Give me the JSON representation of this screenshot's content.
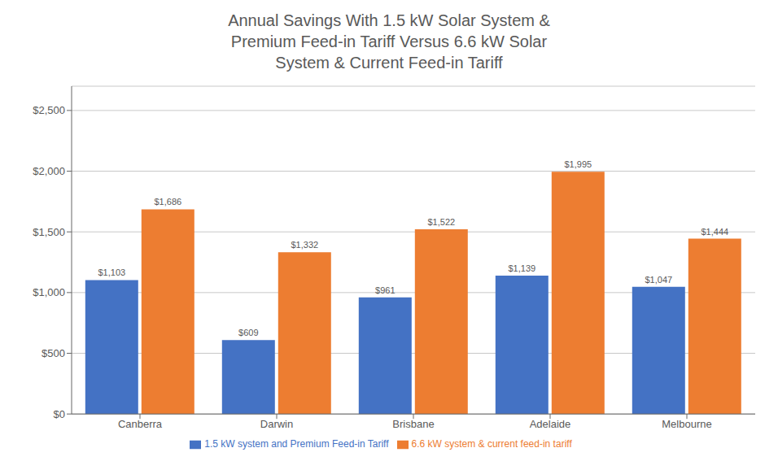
{
  "chart_data": {
    "type": "bar",
    "title": "Annual Savings With 1.5 kW Solar System &\nPremium Feed-in Tariff Versus 6.6 kW Solar\nSystem & Current Feed-in Tariff",
    "categories": [
      "Canberra",
      "Darwin",
      "Brisbane",
      "Adelaide",
      "Melbourne"
    ],
    "series": [
      {
        "name": "1.5 kW system and Premium Feed-in Tariff",
        "color": "#4472C4",
        "values": [
          1103,
          609,
          961,
          1139,
          1047
        ],
        "value_labels": [
          "$1,103",
          "$609",
          "$961",
          "$1,139",
          "$1,047"
        ]
      },
      {
        "name": "6.6 kW system & current feed-in tariff",
        "color": "#ED7D31",
        "values": [
          1686,
          1332,
          1522,
          1995,
          1444
        ],
        "value_labels": [
          "$1,686",
          "$1,332",
          "$1,522",
          "$1,995",
          "$1,444"
        ]
      }
    ],
    "ylim": [
      0,
      2700
    ],
    "yticks": [
      {
        "value": 0,
        "label": "$0"
      },
      {
        "value": 500,
        "label": "$500"
      },
      {
        "value": 1000,
        "label": "$1,000"
      },
      {
        "value": 1500,
        "label": "$1,500"
      },
      {
        "value": 2000,
        "label": "$2,000"
      },
      {
        "value": 2500,
        "label": "$2,500"
      }
    ],
    "grid": true,
    "legend": "bottom",
    "data_labels": true
  }
}
